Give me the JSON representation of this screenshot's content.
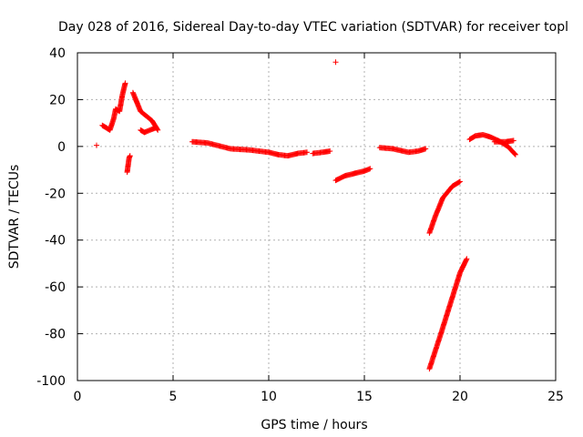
{
  "chart_data": {
    "type": "scatter",
    "title": "Day 028 of 2016, Sidereal Day-to-day VTEC variation (SDTVAR) for receiver topl",
    "xlabel": "GPS time / hours",
    "ylabel": "SDTVAR / TECUs",
    "xlim": [
      0,
      25
    ],
    "ylim": [
      -100,
      40
    ],
    "x_ticks": [
      0,
      5,
      10,
      15,
      20,
      25
    ],
    "y_ticks": [
      -100,
      -80,
      -60,
      -40,
      -20,
      0,
      20,
      40
    ],
    "grid": true,
    "marker": "+",
    "color": "#ff0000",
    "series": [
      {
        "segments": [
          {
            "x": [
              1.0
            ],
            "y": [
              0.5
            ]
          },
          {
            "x": [
              1.3,
              1.5,
              1.7,
              1.9,
              2.0,
              2.2,
              2.35,
              2.5
            ],
            "y": [
              9,
              8,
              7,
              12,
              16,
              15,
              22,
              27
            ]
          },
          {
            "x": [
              2.6,
              2.65,
              2.7,
              2.75
            ],
            "y": [
              -11,
              -8,
              -5,
              -4
            ]
          },
          {
            "x": [
              2.9,
              3.1,
              3.3,
              3.6,
              3.9,
              4.2
            ],
            "y": [
              23,
              19,
              15,
              13,
              11,
              7
            ]
          },
          {
            "x": [
              3.3,
              3.5,
              3.8,
              4.1
            ],
            "y": [
              7,
              6,
              7,
              8
            ]
          },
          {
            "x": [
              6.0,
              6.8,
              8.0,
              9.0,
              10.0,
              10.5,
              11.0,
              11.5,
              12.0
            ],
            "y": [
              2,
              1.5,
              -1,
              -1.5,
              -2.5,
              -3.5,
              -4,
              -3,
              -2.5
            ]
          },
          {
            "x": [
              12.3,
              12.8,
              13.2
            ],
            "y": [
              -3,
              -2.5,
              -2
            ]
          },
          {
            "x": [
              13.5
            ],
            "y": [
              36
            ]
          },
          {
            "x": [
              13.5,
              14.0,
              14.5,
              15.0,
              15.3
            ],
            "y": [
              -14.5,
              -12.5,
              -11.5,
              -10.5,
              -9.5
            ]
          },
          {
            "x": [
              15.8,
              16.5,
              17.3,
              17.8,
              18.2
            ],
            "y": [
              -0.5,
              -1,
              -2.5,
              -2,
              -1
            ]
          },
          {
            "x": [
              18.4,
              18.7,
              19.1,
              19.6,
              20.0
            ],
            "y": [
              -37,
              -30,
              -22,
              -17,
              -15
            ]
          },
          {
            "x": [
              18.4,
              19.0,
              19.5,
              20.0,
              20.35
            ],
            "y": [
              -95,
              -80,
              -67,
              -54,
              -48
            ]
          },
          {
            "x": [
              20.5,
              20.8,
              21.2,
              21.6,
              22.0,
              22.5,
              22.9
            ],
            "y": [
              3,
              4.5,
              5,
              4,
              2.5,
              0,
              -3.5
            ]
          },
          {
            "x": [
              21.8,
              22.4,
              22.8
            ],
            "y": [
              2,
              2,
              2.5
            ]
          }
        ]
      }
    ]
  }
}
